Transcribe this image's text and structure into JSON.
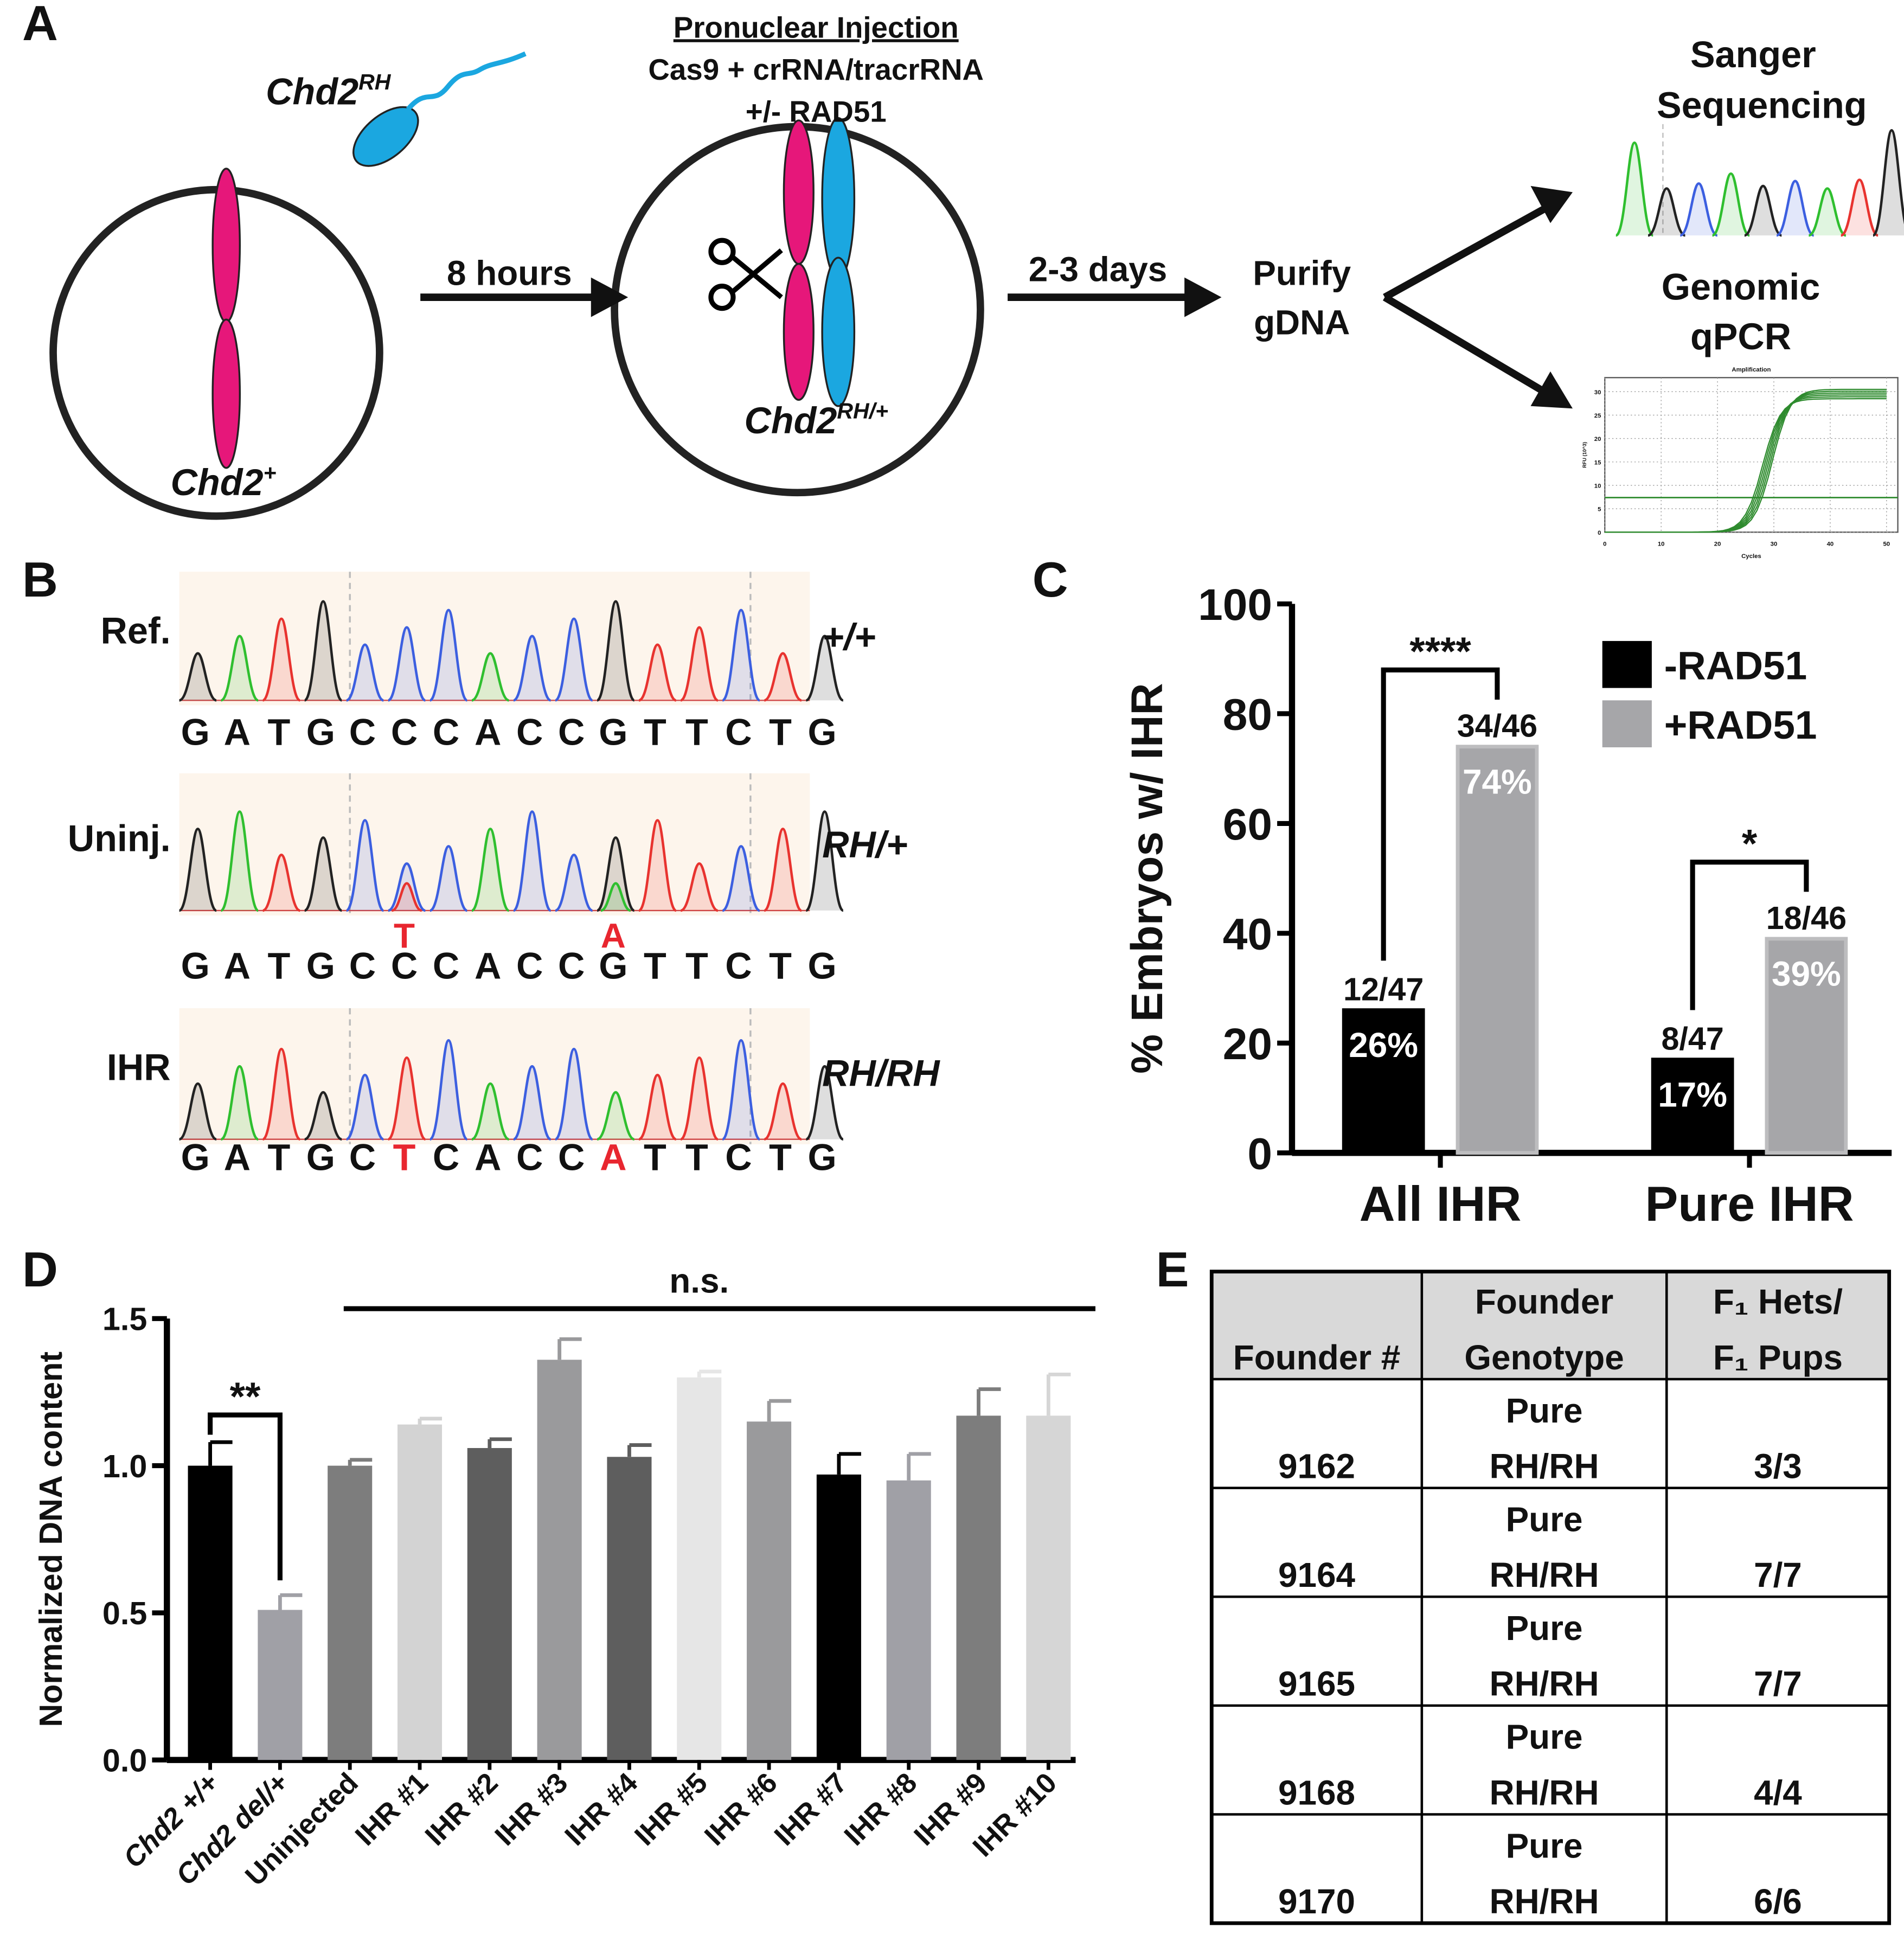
{
  "panel_labels": [
    "A",
    "B",
    "C",
    "D",
    "E"
  ],
  "panel_a": {
    "sperm_label": {
      "text": "Chd2",
      "sup": "RH"
    },
    "injection": {
      "title": "Pronuclear Injection",
      "lines": [
        "Cas9 + crRNA/tracrRNA",
        "+/- RAD51"
      ]
    },
    "step1": "8 hours",
    "step2": "2-3 days",
    "purify": [
      "Purify",
      "gDNA"
    ],
    "sanger": [
      "Sanger",
      "Sequencing"
    ],
    "qpcr": [
      "Genomic",
      "qPCR"
    ],
    "zygote_label": {
      "text": "Chd2",
      "sup": "+"
    },
    "embryo_label": {
      "text": "Chd2",
      "sup": "RH/+"
    },
    "qpcr_plot": {
      "title": "Amplification",
      "xlabel": "Cycles",
      "ylabel": "RFU (10^3)",
      "xlim": [
        0,
        52
      ],
      "ylim": [
        0,
        33
      ],
      "xticks": [
        0,
        10,
        20,
        30,
        40,
        50
      ],
      "yticks": [
        0,
        5,
        10,
        15,
        20,
        25,
        30
      ]
    }
  },
  "panel_b": {
    "mutation_color": "#e8262f",
    "rows": [
      {
        "label": "Ref.",
        "genotype": "+/+",
        "sequence": [
          "G",
          "A",
          "T",
          "G",
          "C",
          "C",
          "C",
          "A",
          "C",
          "C",
          "G",
          "T",
          "T",
          "C",
          "T",
          "G"
        ]
      },
      {
        "label": "Uninj.",
        "genotype": "RH/+",
        "variants": [
          null,
          null,
          null,
          null,
          null,
          "T",
          null,
          null,
          null,
          null,
          "A",
          null,
          null,
          null,
          null,
          null
        ],
        "sequence": [
          "G",
          "A",
          "T",
          "G",
          "C",
          "C",
          "C",
          "A",
          "C",
          "C",
          "G",
          "T",
          "T",
          "C",
          "T",
          "G"
        ]
      },
      {
        "label": "IHR",
        "genotype": "RH/RH",
        "sequence": [
          "G",
          "A",
          "T",
          "G",
          "C",
          "T",
          "C",
          "A",
          "C",
          "C",
          "A",
          "T",
          "T",
          "C",
          "T",
          "G"
        ]
      }
    ]
  },
  "chart_data": [
    {
      "type": "bar",
      "ylabel": "% Embryos w/ IHR",
      "categories": [
        "All IHR",
        "Pure IHR"
      ],
      "series": [
        {
          "name": "-RAD51",
          "color": "#000000",
          "values": [
            26,
            17
          ],
          "value_labels": [
            "26%",
            "17%"
          ],
          "count_labels": [
            "12/47",
            "8/47"
          ]
        },
        {
          "name": "+RAD51",
          "color": "#a6a6a9",
          "values": [
            74,
            39
          ],
          "value_labels": [
            "74%",
            "39%"
          ],
          "count_labels": [
            "34/46",
            "18/46"
          ]
        }
      ],
      "ylim": [
        0,
        100
      ],
      "yticks": [
        0,
        20,
        40,
        60,
        80,
        100
      ],
      "legend": "upper right",
      "significance": [
        "****",
        "*"
      ]
    },
    {
      "type": "bar",
      "ylabel": "Normalized DNA content",
      "categories": [
        "Chd2 +/+",
        "Chd2 del/+",
        "Uninjected",
        "IHR #1",
        "IHR #2",
        "IHR #3",
        "IHR #4",
        "IHR #5",
        "IHR #6",
        "IHR #7",
        "IHR #8",
        "IHR #9",
        "IHR #10"
      ],
      "values": [
        1.0,
        0.51,
        1.0,
        1.14,
        1.06,
        1.36,
        1.03,
        1.3,
        1.15,
        0.97,
        0.95,
        1.17,
        1.17
      ],
      "errors": [
        0.08,
        0.05,
        0.02,
        0.02,
        0.03,
        0.07,
        0.04,
        0.02,
        0.07,
        0.07,
        0.09,
        0.09,
        0.14
      ],
      "colors": [
        "#000000",
        "#a0a0a6",
        "#7d7d7d",
        "#d3d3d3",
        "#5e5e5e",
        "#9a9a9c",
        "#5e5e5e",
        "#e6e6e6",
        "#9a9a9c",
        "#000000",
        "#a0a0a6",
        "#7d7d7d",
        "#d6d6d6"
      ],
      "ylim": [
        0,
        1.5
      ],
      "yticks": [
        {
          "value": 0,
          "label": "0.0"
        },
        0.5,
        {
          "value": 1,
          "label": "1.0"
        },
        1.5
      ],
      "annotations": [
        "**",
        "n.s."
      ]
    }
  ],
  "table": {
    "header": [
      [
        "Founder #"
      ],
      [
        "Founder",
        "Genotype"
      ],
      [
        "F₁ Hets/",
        "F₁ Pups"
      ]
    ],
    "rows": [
      [
        [
          "9162"
        ],
        [
          "Pure",
          "RH/RH"
        ],
        [
          "3/3"
        ]
      ],
      [
        [
          "9164"
        ],
        [
          "Pure",
          "RH/RH"
        ],
        [
          "7/7"
        ]
      ],
      [
        [
          "9165"
        ],
        [
          "Pure",
          "RH/RH"
        ],
        [
          "7/7"
        ]
      ],
      [
        [
          "9168"
        ],
        [
          "Pure",
          "RH/RH"
        ],
        [
          "4/4"
        ]
      ],
      [
        [
          "9170"
        ],
        [
          "Pure",
          "RH/RH"
        ],
        [
          "6/6"
        ]
      ]
    ]
  }
}
